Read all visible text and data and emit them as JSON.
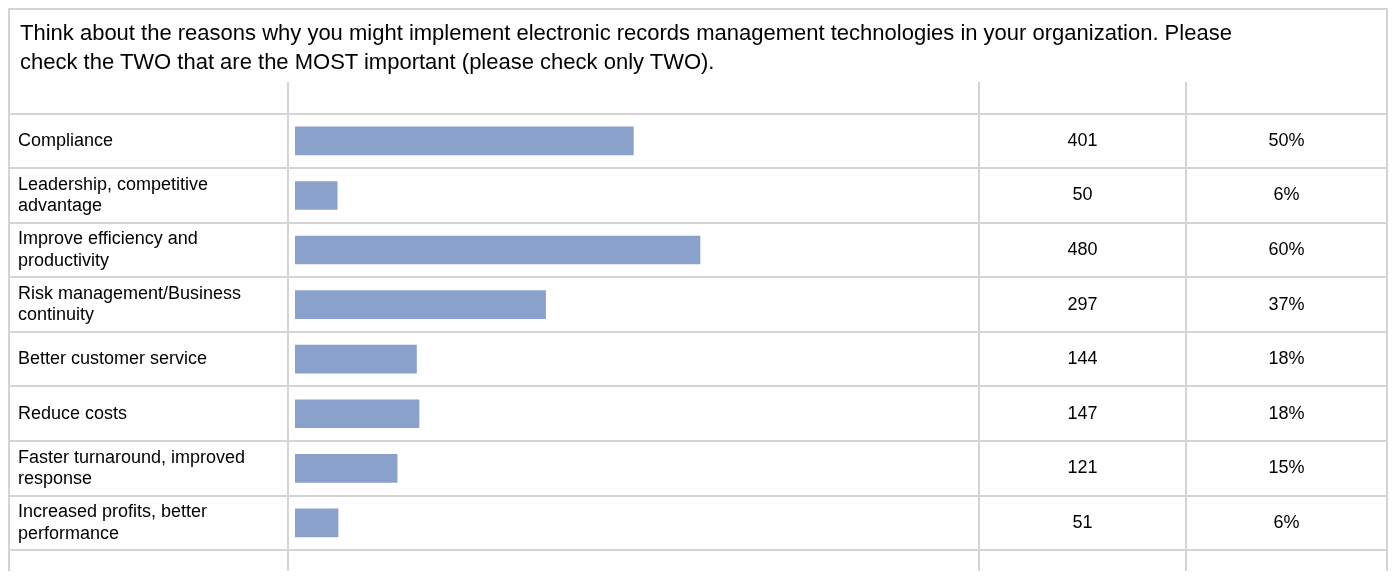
{
  "chart_data": {
    "type": "bar",
    "orientation": "horizontal",
    "title": "Think about the reasons why you might implement electronic records management technologies in your organization. Please check the TWO that are the MOST important (please check only TWO).",
    "categories": [
      "Compliance",
      "Leadership, competitive advantage",
      "Improve efficiency and productivity",
      "Risk management/Business continuity",
      "Better customer service",
      "Reduce costs",
      "Faster turnaround, improved response",
      "Increased profits, better performance"
    ],
    "values": [
      401,
      50,
      480,
      297,
      144,
      147,
      121,
      51
    ],
    "color": "#8aa2cb",
    "data_labels": true,
    "legend": false,
    "annotations": [
      "50%",
      "6%",
      "60%",
      "37%",
      "18%",
      "18%",
      "15%",
      "6%"
    ]
  }
}
